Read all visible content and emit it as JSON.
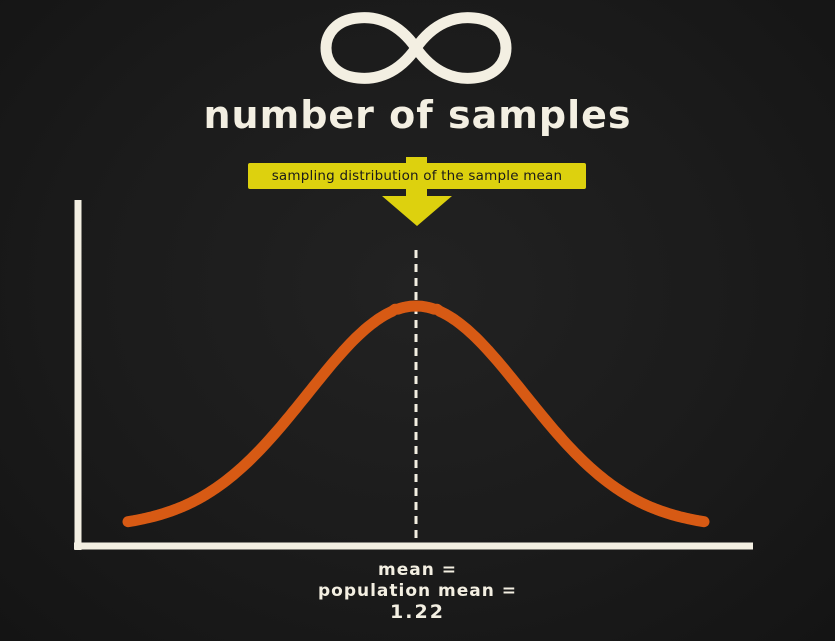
{
  "title": "number of samples",
  "banner": "sampling distribution of the sample mean",
  "annotation": {
    "line1": "mean =",
    "line2": "population mean =",
    "value": "1.22"
  },
  "colors": {
    "background": "#1b1b1b",
    "chalk": "#f3efe2",
    "curve": "#d75a14",
    "banner": "#ddd10e"
  },
  "icons": {
    "top_symbol": "infinity-icon",
    "pointer": "down-arrow-icon"
  },
  "chart_data": {
    "type": "line",
    "description_curve": "bell-shaped normal curve centered on the mean",
    "mean": 1.22,
    "dashed_line_at_mean": true
  }
}
